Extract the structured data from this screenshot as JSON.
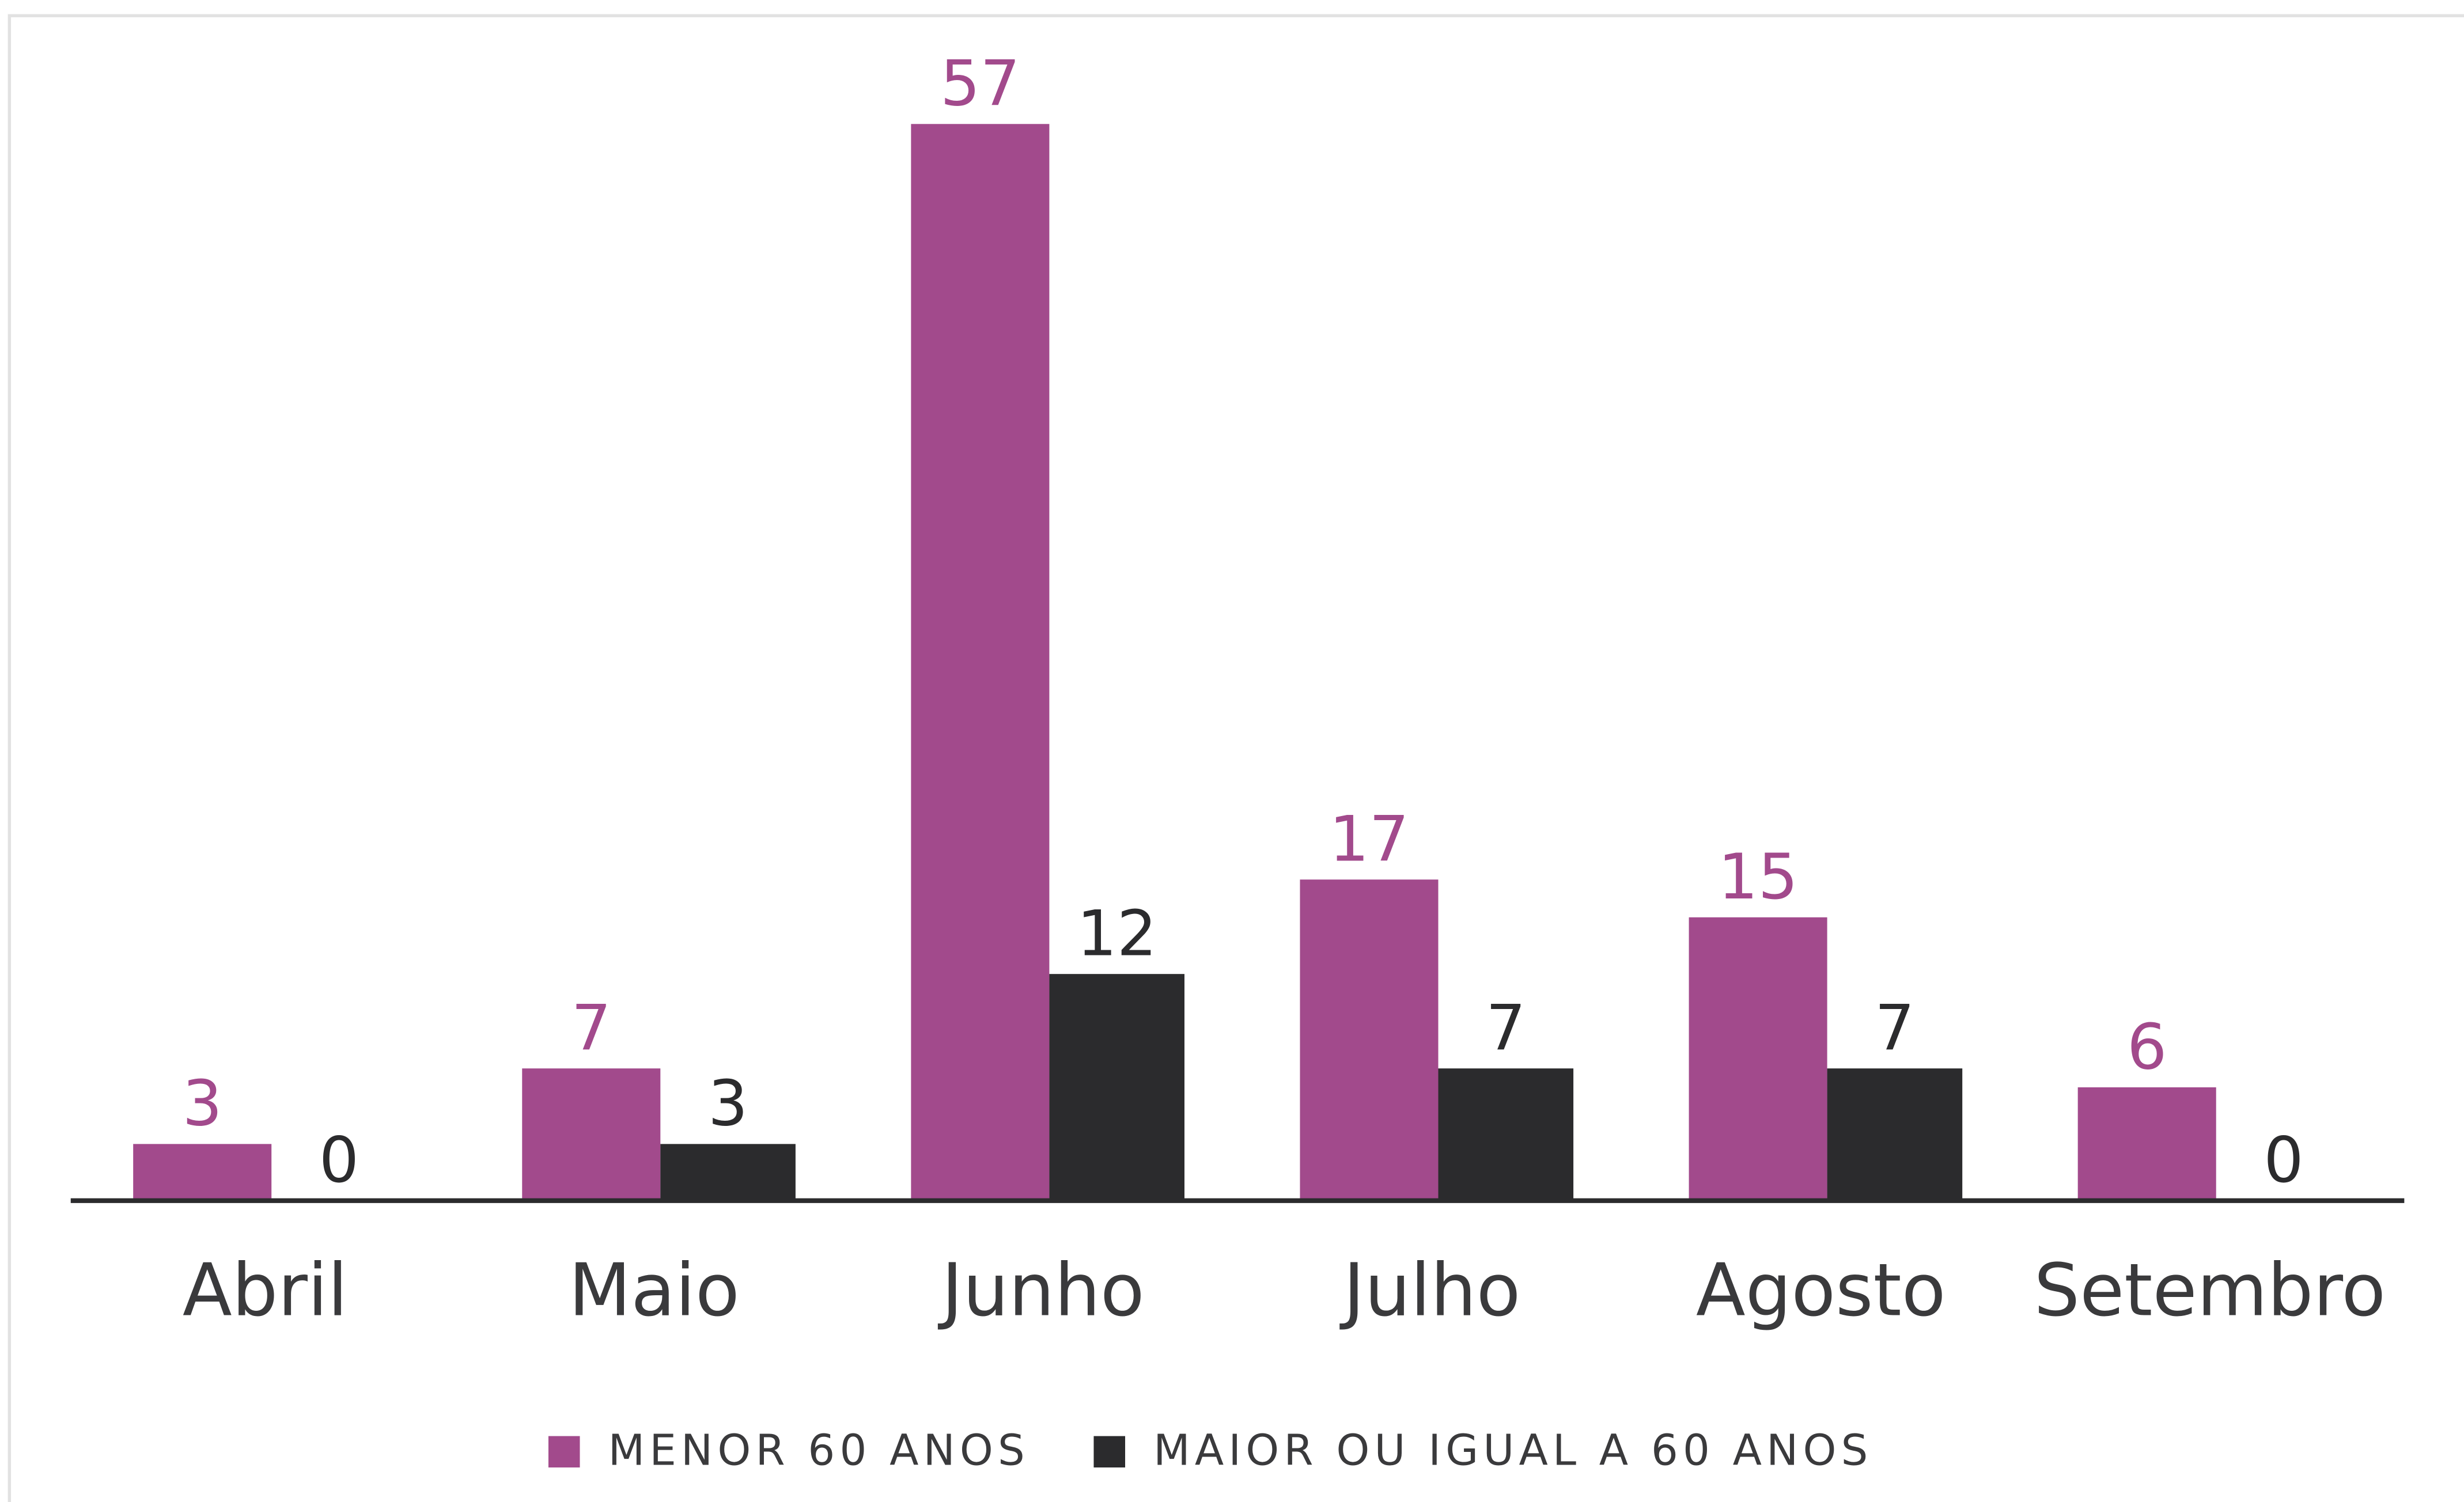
{
  "chart_data": {
    "type": "bar",
    "categories": [
      "Abril",
      "Maio",
      "Junho",
      "Julho",
      "Agosto",
      "Setembro"
    ],
    "series": [
      {
        "name": "MENOR 60 ANOS",
        "color": "#a24a8c",
        "values": [
          3,
          7,
          57,
          17,
          15,
          6
        ]
      },
      {
        "name": "MAIOR OU IGUAL A 60 ANOS",
        "color": "#2b2b2d",
        "values": [
          0,
          3,
          12,
          7,
          7,
          0
        ]
      }
    ],
    "legend": "bottom"
  }
}
